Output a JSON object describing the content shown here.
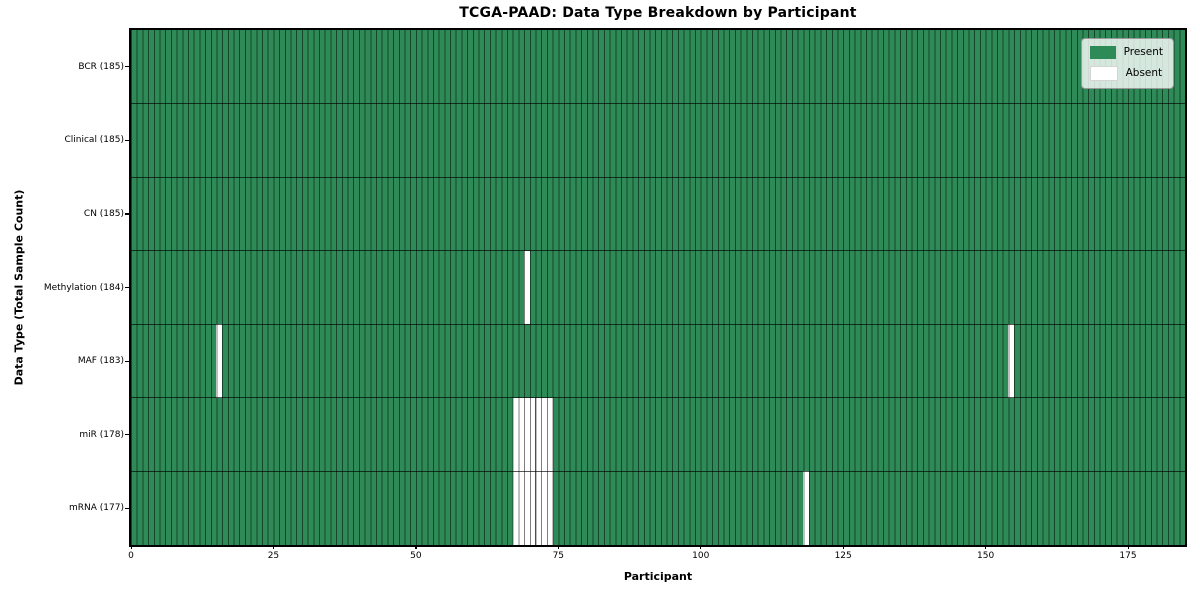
{
  "figure": {
    "title": "TCGA-PAAD: Data Type Breakdown by Participant",
    "x_axis_label": "Participant",
    "y_axis_label": "Data Type (Total Sample Count)"
  },
  "colors": {
    "present": "#2e8b57",
    "absent": "#ffffff",
    "column_grid_line": "rgba(0,0,0,0.5)",
    "row_separator_line": "rgba(0,0,0,0.65)",
    "axis_border": "#000000",
    "legend_background": "rgba(255,255,255,0.8)",
    "legend_border": "#999999"
  },
  "chart_data": {
    "type": "heatmap",
    "title": "TCGA-PAAD: Data Type Breakdown by Participant",
    "xlabel": "Participant",
    "ylabel": "Data Type (Total Sample Count)",
    "xlim": [
      0,
      185
    ],
    "x_ticks": [
      0,
      25,
      50,
      75,
      100,
      125,
      150,
      175
    ],
    "n_participants": 185,
    "grid": true,
    "legend_position": "upper right",
    "legend": [
      {
        "label": "Present",
        "color": "#2e8b57",
        "name": "present"
      },
      {
        "label": "Absent",
        "color": "#ffffff",
        "name": "absent"
      }
    ],
    "rows": [
      {
        "label": "BCR (185)",
        "data_type": "BCR",
        "present_count": 185,
        "absent_participants": []
      },
      {
        "label": "Clinical (185)",
        "data_type": "Clinical",
        "present_count": 185,
        "absent_participants": []
      },
      {
        "label": "CN (185)",
        "data_type": "CN",
        "present_count": 185,
        "absent_participants": []
      },
      {
        "label": "Methylation (184)",
        "data_type": "Methylation",
        "present_count": 184,
        "absent_participants": [
          69
        ]
      },
      {
        "label": "MAF (183)",
        "data_type": "MAF",
        "present_count": 183,
        "absent_participants": [
          15,
          154
        ]
      },
      {
        "label": "miR (178)",
        "data_type": "miR",
        "present_count": 178,
        "absent_participants": [
          67,
          68,
          69,
          70,
          71,
          72,
          73
        ]
      },
      {
        "label": "mRNA (177)",
        "data_type": "mRNA",
        "present_count": 177,
        "absent_participants": [
          67,
          68,
          69,
          70,
          71,
          72,
          73,
          118
        ]
      }
    ]
  }
}
